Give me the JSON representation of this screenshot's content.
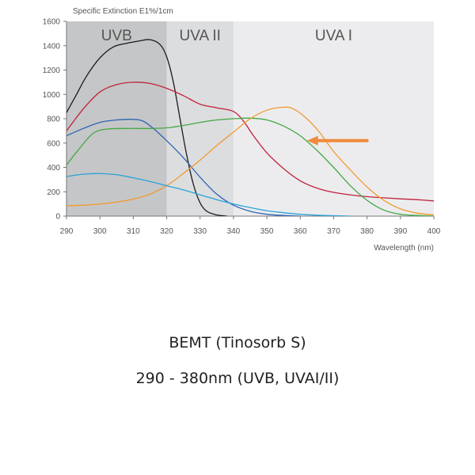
{
  "chart_data": {
    "type": "line",
    "title": "",
    "ylabel": "Specific Extinction E1%/1cm",
    "xlabel": "Wavelength (nm)",
    "xlim": [
      290,
      400
    ],
    "ylim": [
      0,
      1600
    ],
    "xticks": [
      290,
      300,
      310,
      320,
      330,
      340,
      350,
      360,
      370,
      380,
      390,
      400
    ],
    "yticks": [
      0,
      200,
      400,
      600,
      800,
      1000,
      1200,
      1400,
      1600
    ],
    "grid": false,
    "bands": [
      {
        "label": "UVB",
        "from": 290,
        "to": 320,
        "color": "#c5c6c7"
      },
      {
        "label": "UVA II",
        "from": 320,
        "to": 340,
        "color": "#dcdddf"
      },
      {
        "label": "UVA I",
        "from": 340,
        "to": 400,
        "color": "#ececee"
      }
    ],
    "series": [
      {
        "color": "#1a1a1a",
        "points": [
          [
            290,
            850
          ],
          [
            293,
            1000
          ],
          [
            296,
            1150
          ],
          [
            300,
            1300
          ],
          [
            304,
            1390
          ],
          [
            308,
            1420
          ],
          [
            312,
            1440
          ],
          [
            315,
            1450
          ],
          [
            318,
            1410
          ],
          [
            320,
            1310
          ],
          [
            322,
            1100
          ],
          [
            324,
            800
          ],
          [
            326,
            500
          ],
          [
            328,
            260
          ],
          [
            330,
            110
          ],
          [
            332,
            40
          ],
          [
            335,
            10
          ],
          [
            338,
            0
          ]
        ]
      },
      {
        "color": "#c0223b",
        "points": [
          [
            290,
            700
          ],
          [
            295,
            880
          ],
          [
            300,
            1020
          ],
          [
            305,
            1080
          ],
          [
            310,
            1100
          ],
          [
            315,
            1090
          ],
          [
            320,
            1050
          ],
          [
            325,
            990
          ],
          [
            330,
            920
          ],
          [
            335,
            890
          ],
          [
            340,
            860
          ],
          [
            343,
            780
          ],
          [
            346,
            660
          ],
          [
            350,
            520
          ],
          [
            355,
            390
          ],
          [
            360,
            290
          ],
          [
            365,
            230
          ],
          [
            370,
            195
          ],
          [
            375,
            175
          ],
          [
            380,
            160
          ],
          [
            385,
            150
          ],
          [
            390,
            142
          ],
          [
            395,
            135
          ],
          [
            400,
            125
          ]
        ]
      },
      {
        "color": "#2d64b4",
        "points": [
          [
            290,
            660
          ],
          [
            295,
            720
          ],
          [
            300,
            770
          ],
          [
            305,
            790
          ],
          [
            310,
            795
          ],
          [
            313,
            780
          ],
          [
            316,
            720
          ],
          [
            320,
            620
          ],
          [
            325,
            480
          ],
          [
            330,
            320
          ],
          [
            335,
            180
          ],
          [
            340,
            90
          ],
          [
            345,
            40
          ],
          [
            350,
            15
          ],
          [
            355,
            5
          ],
          [
            360,
            0
          ]
        ]
      },
      {
        "color": "#43a843",
        "points": [
          [
            290,
            420
          ],
          [
            294,
            560
          ],
          [
            298,
            680
          ],
          [
            302,
            715
          ],
          [
            308,
            720
          ],
          [
            315,
            720
          ],
          [
            320,
            725
          ],
          [
            325,
            745
          ],
          [
            330,
            770
          ],
          [
            335,
            790
          ],
          [
            340,
            800
          ],
          [
            345,
            805
          ],
          [
            350,
            790
          ],
          [
            355,
            740
          ],
          [
            360,
            660
          ],
          [
            365,
            540
          ],
          [
            370,
            400
          ],
          [
            375,
            250
          ],
          [
            380,
            130
          ],
          [
            385,
            50
          ],
          [
            390,
            15
          ],
          [
            395,
            5
          ],
          [
            400,
            0
          ]
        ]
      },
      {
        "color": "#f29a2e",
        "points": [
          [
            290,
            85
          ],
          [
            295,
            90
          ],
          [
            300,
            100
          ],
          [
            305,
            115
          ],
          [
            310,
            140
          ],
          [
            315,
            180
          ],
          [
            320,
            250
          ],
          [
            325,
            350
          ],
          [
            330,
            460
          ],
          [
            335,
            580
          ],
          [
            340,
            690
          ],
          [
            345,
            800
          ],
          [
            350,
            870
          ],
          [
            355,
            895
          ],
          [
            358,
            880
          ],
          [
            362,
            800
          ],
          [
            366,
            680
          ],
          [
            370,
            530
          ],
          [
            375,
            380
          ],
          [
            380,
            240
          ],
          [
            385,
            130
          ],
          [
            390,
            60
          ],
          [
            395,
            25
          ],
          [
            400,
            10
          ]
        ]
      },
      {
        "color": "#2aa3d8",
        "points": [
          [
            290,
            325
          ],
          [
            295,
            345
          ],
          [
            300,
            350
          ],
          [
            305,
            340
          ],
          [
            310,
            315
          ],
          [
            315,
            285
          ],
          [
            320,
            250
          ],
          [
            325,
            215
          ],
          [
            330,
            175
          ],
          [
            335,
            135
          ],
          [
            340,
            100
          ],
          [
            345,
            70
          ],
          [
            350,
            45
          ],
          [
            355,
            28
          ],
          [
            360,
            15
          ],
          [
            365,
            8
          ],
          [
            370,
            3
          ],
          [
            375,
            0
          ]
        ]
      }
    ],
    "annotations": [
      {
        "type": "arrow",
        "color": "#f08a3c",
        "from": [
          380,
          620
        ],
        "to": [
          362,
          620
        ]
      }
    ]
  },
  "caption": {
    "title": "BEMT (Tinosorb S)",
    "subtitle": "290 - 380nm (UVB, UVAI/II)"
  }
}
